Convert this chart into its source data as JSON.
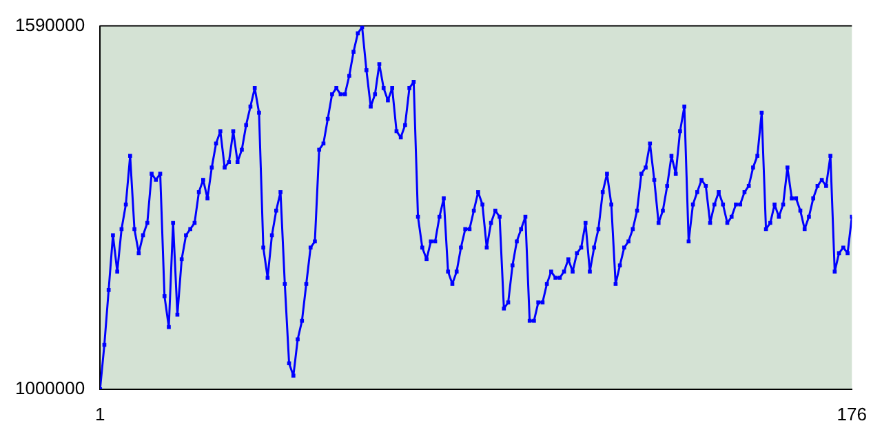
{
  "chart_data": {
    "type": "line",
    "x": [
      1,
      2,
      3,
      4,
      5,
      6,
      7,
      8,
      9,
      10,
      11,
      12,
      13,
      14,
      15,
      16,
      17,
      18,
      19,
      20,
      21,
      22,
      23,
      24,
      25,
      26,
      27,
      28,
      29,
      30,
      31,
      32,
      33,
      34,
      35,
      36,
      37,
      38,
      39,
      40,
      41,
      42,
      43,
      44,
      45,
      46,
      47,
      48,
      49,
      50,
      51,
      52,
      53,
      54,
      55,
      56,
      57,
      58,
      59,
      60,
      61,
      62,
      63,
      64,
      65,
      66,
      67,
      68,
      69,
      70,
      71,
      72,
      73,
      74,
      75,
      76,
      77,
      78,
      79,
      80,
      81,
      82,
      83,
      84,
      85,
      86,
      87,
      88,
      89,
      90,
      91,
      92,
      93,
      94,
      95,
      96,
      97,
      98,
      99,
      100,
      101,
      102,
      103,
      104,
      105,
      106,
      107,
      108,
      109,
      110,
      111,
      112,
      113,
      114,
      115,
      116,
      117,
      118,
      119,
      120,
      121,
      122,
      123,
      124,
      125,
      126,
      127,
      128,
      129,
      130,
      131,
      132,
      133,
      134,
      135,
      136,
      137,
      138,
      139,
      140,
      141,
      142,
      143,
      144,
      145,
      146,
      147,
      148,
      149,
      150,
      151,
      152,
      153,
      154,
      155,
      156,
      157,
      158,
      159,
      160,
      161,
      162,
      163,
      164,
      165,
      166,
      167,
      168,
      169,
      170,
      171,
      172,
      173,
      174,
      175,
      176
    ],
    "series": [
      {
        "color": "#0000ff",
        "values": [
          1000000,
          1072000,
          1161000,
          1250000,
          1191000,
          1260000,
          1300000,
          1379000,
          1260000,
          1221000,
          1250000,
          1270000,
          1350000,
          1340000,
          1350000,
          1151000,
          1101000,
          1270000,
          1121000,
          1211000,
          1250000,
          1260000,
          1270000,
          1320000,
          1340000,
          1310000,
          1360000,
          1399000,
          1419000,
          1360000,
          1369000,
          1419000,
          1369000,
          1389000,
          1429000,
          1459000,
          1489000,
          1449000,
          1230000,
          1181000,
          1250000,
          1290000,
          1320000,
          1171000,
          1042000,
          1022000,
          1081000,
          1111000,
          1171000,
          1230000,
          1240000,
          1389000,
          1399000,
          1439000,
          1479000,
          1489000,
          1479000,
          1479000,
          1509000,
          1548000,
          1578000,
          1588000,
          1518000,
          1459000,
          1479000,
          1528000,
          1489000,
          1469000,
          1489000,
          1419000,
          1409000,
          1429000,
          1489000,
          1499000,
          1280000,
          1230000,
          1211000,
          1240000,
          1240000,
          1280000,
          1310000,
          1191000,
          1171000,
          1191000,
          1230000,
          1260000,
          1260000,
          1290000,
          1320000,
          1300000,
          1230000,
          1270000,
          1290000,
          1280000,
          1131000,
          1141000,
          1201000,
          1240000,
          1260000,
          1280000,
          1111000,
          1111000,
          1141000,
          1141000,
          1171000,
          1191000,
          1181000,
          1181000,
          1191000,
          1211000,
          1191000,
          1221000,
          1230000,
          1270000,
          1191000,
          1230000,
          1260000,
          1320000,
          1350000,
          1300000,
          1171000,
          1201000,
          1230000,
          1240000,
          1260000,
          1290000,
          1350000,
          1360000,
          1399000,
          1340000,
          1270000,
          1290000,
          1330000,
          1379000,
          1350000,
          1419000,
          1459000,
          1240000,
          1300000,
          1320000,
          1340000,
          1330000,
          1270000,
          1300000,
          1320000,
          1300000,
          1270000,
          1280000,
          1300000,
          1300000,
          1320000,
          1330000,
          1360000,
          1379000,
          1449000,
          1260000,
          1270000,
          1300000,
          1280000,
          1300000,
          1360000,
          1310000,
          1310000,
          1290000,
          1260000,
          1280000,
          1310000,
          1330000,
          1340000,
          1330000,
          1379000,
          1191000,
          1221000,
          1230000,
          1221000,
          1280000
        ]
      }
    ],
    "xlim": [
      1,
      176
    ],
    "xticks": [
      1,
      176
    ],
    "ylim": [
      1000000,
      1590000
    ],
    "yticks": [
      1000000,
      1590000
    ],
    "grid": false,
    "legend": false,
    "marker": "square",
    "line_style": "solid"
  }
}
